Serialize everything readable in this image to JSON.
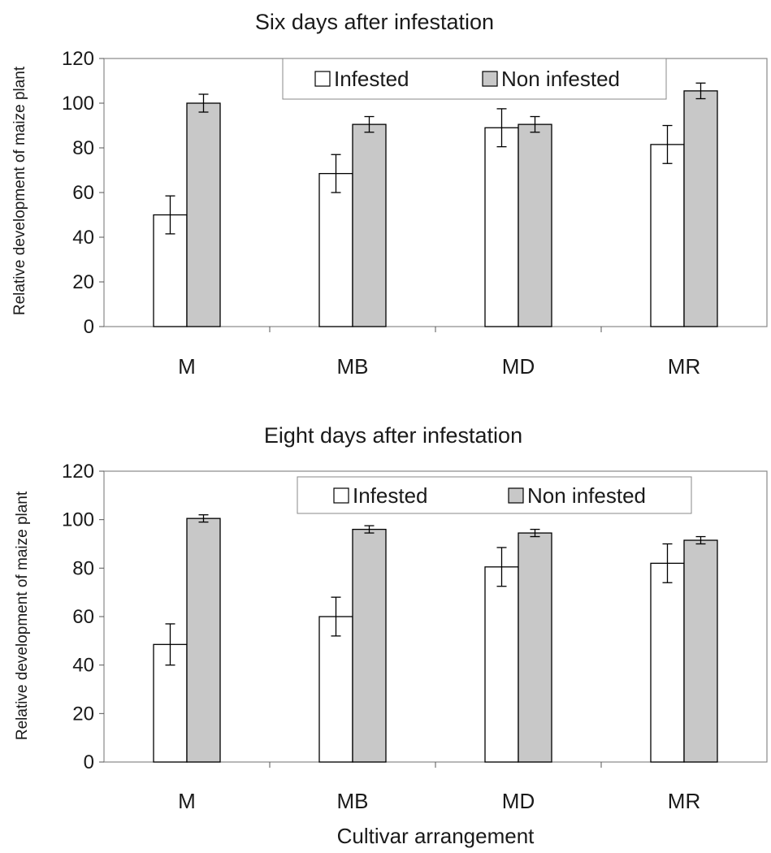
{
  "chart_data": [
    {
      "type": "bar",
      "title": "Six days after infestation",
      "ylabel": "Relative development of maize plant",
      "xlabel": "",
      "ylim": [
        0,
        120
      ],
      "yticks": [
        "0",
        "20",
        "40",
        "60",
        "80",
        "100",
        "120"
      ],
      "categories": [
        "M",
        "MB",
        "MD",
        "MR"
      ],
      "series": [
        {
          "name": "Infested",
          "color": "#ffffff",
          "values": [
            50,
            68.5,
            89,
            81.5
          ],
          "errors": [
            8.5,
            8.5,
            8.5,
            8.5
          ]
        },
        {
          "name": "Non infested",
          "color": "#c8c8c8",
          "values": [
            100,
            90.5,
            90.5,
            105.5
          ],
          "errors": [
            4,
            3.5,
            3.5,
            3.5
          ]
        }
      ],
      "grid": false,
      "legend": "top"
    },
    {
      "type": "bar",
      "title": "Eight days after infestation",
      "ylabel": "Relative development of maize plant",
      "xlabel": "Cultivar arrangement",
      "ylim": [
        0,
        120
      ],
      "yticks": [
        "0",
        "20",
        "40",
        "60",
        "80",
        "100",
        "120"
      ],
      "categories": [
        "M",
        "MB",
        "MD",
        "MR"
      ],
      "series": [
        {
          "name": "Infested",
          "color": "#ffffff",
          "values": [
            48.5,
            60,
            80.5,
            82
          ],
          "errors": [
            8.5,
            8,
            8,
            8
          ]
        },
        {
          "name": "Non infested",
          "color": "#c8c8c8",
          "values": [
            100.5,
            96,
            94.5,
            91.5
          ],
          "errors": [
            1.5,
            1.5,
            1.5,
            1.5
          ]
        }
      ],
      "grid": false,
      "legend": "top"
    }
  ]
}
